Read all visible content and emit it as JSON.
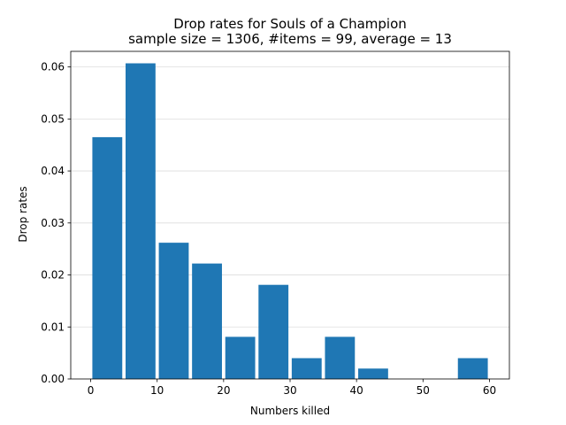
{
  "chart_data": {
    "type": "bar",
    "title": "Drop rates for Souls of a Champion",
    "subtitle": "sample size = 1306, #items = 99, average = 13",
    "xlabel": "Numbers killed",
    "ylabel": "Drop rates",
    "xlim": [
      -3,
      63
    ],
    "ylim": [
      0,
      0.063
    ],
    "grid": "horizontal",
    "bar_width": 4.5,
    "bar_color": "#1f77b4",
    "x_ticks": [
      "0",
      "10",
      "20",
      "30",
      "40",
      "50",
      "60"
    ],
    "y_ticks": [
      "0.00",
      "0.01",
      "0.02",
      "0.03",
      "0.04",
      "0.05",
      "0.06"
    ],
    "bars": [
      {
        "x": 2.5,
        "value": 0.0465
      },
      {
        "x": 7.5,
        "value": 0.0607
      },
      {
        "x": 12.5,
        "value": 0.0262
      },
      {
        "x": 17.5,
        "value": 0.0222
      },
      {
        "x": 22.5,
        "value": 0.0081
      },
      {
        "x": 27.5,
        "value": 0.0181
      },
      {
        "x": 32.5,
        "value": 0.004
      },
      {
        "x": 37.5,
        "value": 0.0081
      },
      {
        "x": 42.5,
        "value": 0.002
      },
      {
        "x": 47.5,
        "value": 0.0
      },
      {
        "x": 52.5,
        "value": 0.0
      },
      {
        "x": 57.5,
        "value": 0.004
      }
    ]
  }
}
